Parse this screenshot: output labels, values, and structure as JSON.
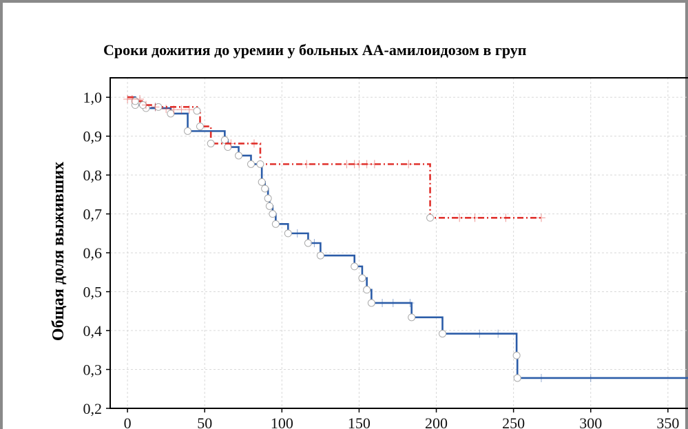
{
  "chart_data": {
    "type": "step",
    "title": "Сроки дожития до уремии у больных АА-амилоидозом в груп",
    "y_label": "Общая доля выживших",
    "xlim": [
      -11.2,
      363
    ],
    "ylim": [
      0.2,
      1.05
    ],
    "xticks": [
      0,
      50,
      100,
      150,
      200,
      250,
      300,
      350
    ],
    "yticks": [
      {
        "value": 0.2,
        "label": "0,2"
      },
      {
        "value": 0.3,
        "label": "0,3"
      },
      {
        "value": 0.4,
        "label": "0,4"
      },
      {
        "value": 0.5,
        "label": "0,5"
      },
      {
        "value": 0.6,
        "label": "0,6"
      },
      {
        "value": 0.7,
        "label": "0,7"
      },
      {
        "value": 0.8,
        "label": "0,8"
      },
      {
        "value": 0.9,
        "label": "0,9"
      },
      {
        "value": 1.0,
        "label": "1,0"
      }
    ],
    "grid": true,
    "series": [
      {
        "color": "#2b5ca8",
        "dash": false,
        "x": [
          0,
          5,
          12,
          28,
          39,
          63,
          65,
          72,
          80,
          87,
          89,
          91,
          92,
          94,
          96,
          104,
          117,
          125,
          147,
          152,
          155,
          158,
          184,
          204,
          252,
          252.5,
          363
        ],
        "values": [
          1.0,
          0.98,
          0.972,
          0.958,
          0.913,
          0.89,
          0.872,
          0.85,
          0.828,
          0.782,
          0.765,
          0.74,
          0.72,
          0.7,
          0.674,
          0.65,
          0.625,
          0.593,
          0.565,
          0.535,
          0.505,
          0.471,
          0.434,
          0.392,
          0.336,
          0.278,
          0.278
        ],
        "censored_x": [
          18,
          110,
          121,
          165,
          172,
          183,
          228,
          240,
          268,
          300
        ],
        "censored_values": [
          0.975,
          0.65,
          0.625,
          0.471,
          0.471,
          0.471,
          0.392,
          0.392,
          0.278,
          0.278
        ]
      },
      {
        "color": "#e0312c",
        "dash": true,
        "x": [
          0,
          5,
          10,
          20,
          45,
          47,
          54,
          86,
          196,
          268
        ],
        "values": [
          1.0,
          0.99,
          0.98,
          0.975,
          0.965,
          0.925,
          0.881,
          0.828,
          0.69,
          0.69
        ],
        "censored_x": [
          0,
          3,
          8,
          12,
          18,
          25,
          30,
          35,
          40,
          67,
          82,
          116,
          142,
          147,
          150,
          155,
          160,
          182,
          215,
          225,
          245,
          268
        ],
        "censored_values": [
          0.995,
          0.995,
          0.995,
          0.98,
          0.975,
          0.97,
          0.968,
          0.968,
          0.968,
          0.881,
          0.881,
          0.828,
          0.828,
          0.828,
          0.828,
          0.828,
          0.828,
          0.828,
          0.69,
          0.69,
          0.69,
          0.69
        ]
      }
    ]
  }
}
